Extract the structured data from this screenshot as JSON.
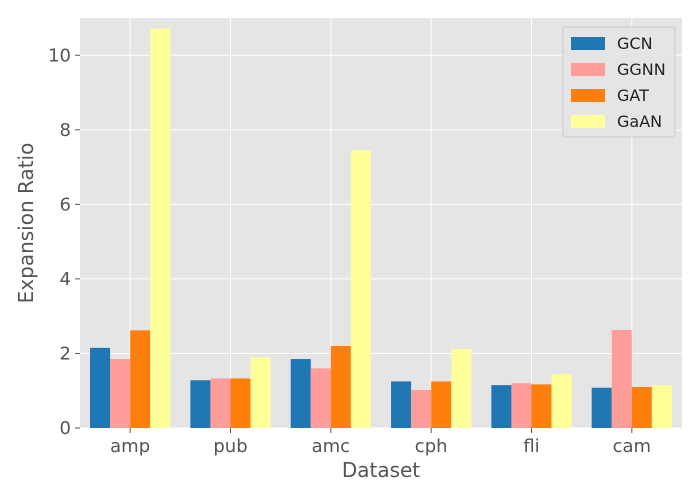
{
  "chart_data": {
    "type": "bar",
    "title": "",
    "xlabel": "Dataset",
    "ylabel": "Expansion Ratio",
    "categories": [
      "amp",
      "pub",
      "amc",
      "cph",
      "fli",
      "cam"
    ],
    "ylim": [
      0,
      11
    ],
    "yticks": [
      0,
      2,
      4,
      6,
      8,
      10
    ],
    "grid": true,
    "legend_position": "top-right",
    "series": [
      {
        "name": "GCN",
        "color": "#1f77b4",
        "values": [
          2.15,
          1.28,
          1.85,
          1.25,
          1.15,
          1.08
        ]
      },
      {
        "name": "GGNN",
        "color": "#ff9d9a",
        "values": [
          1.85,
          1.33,
          1.6,
          1.02,
          1.2,
          2.63
        ]
      },
      {
        "name": "GAT",
        "color": "#ff7f0e",
        "values": [
          2.62,
          1.33,
          2.2,
          1.25,
          1.17,
          1.1
        ]
      },
      {
        "name": "GaAN",
        "color": "#ffff99",
        "values": [
          10.72,
          1.9,
          7.45,
          2.12,
          1.45,
          1.15
        ]
      }
    ]
  },
  "style": {
    "plot_background": "#e5e5e5",
    "grid_color": "#ffffff",
    "text_color": "#555555"
  }
}
